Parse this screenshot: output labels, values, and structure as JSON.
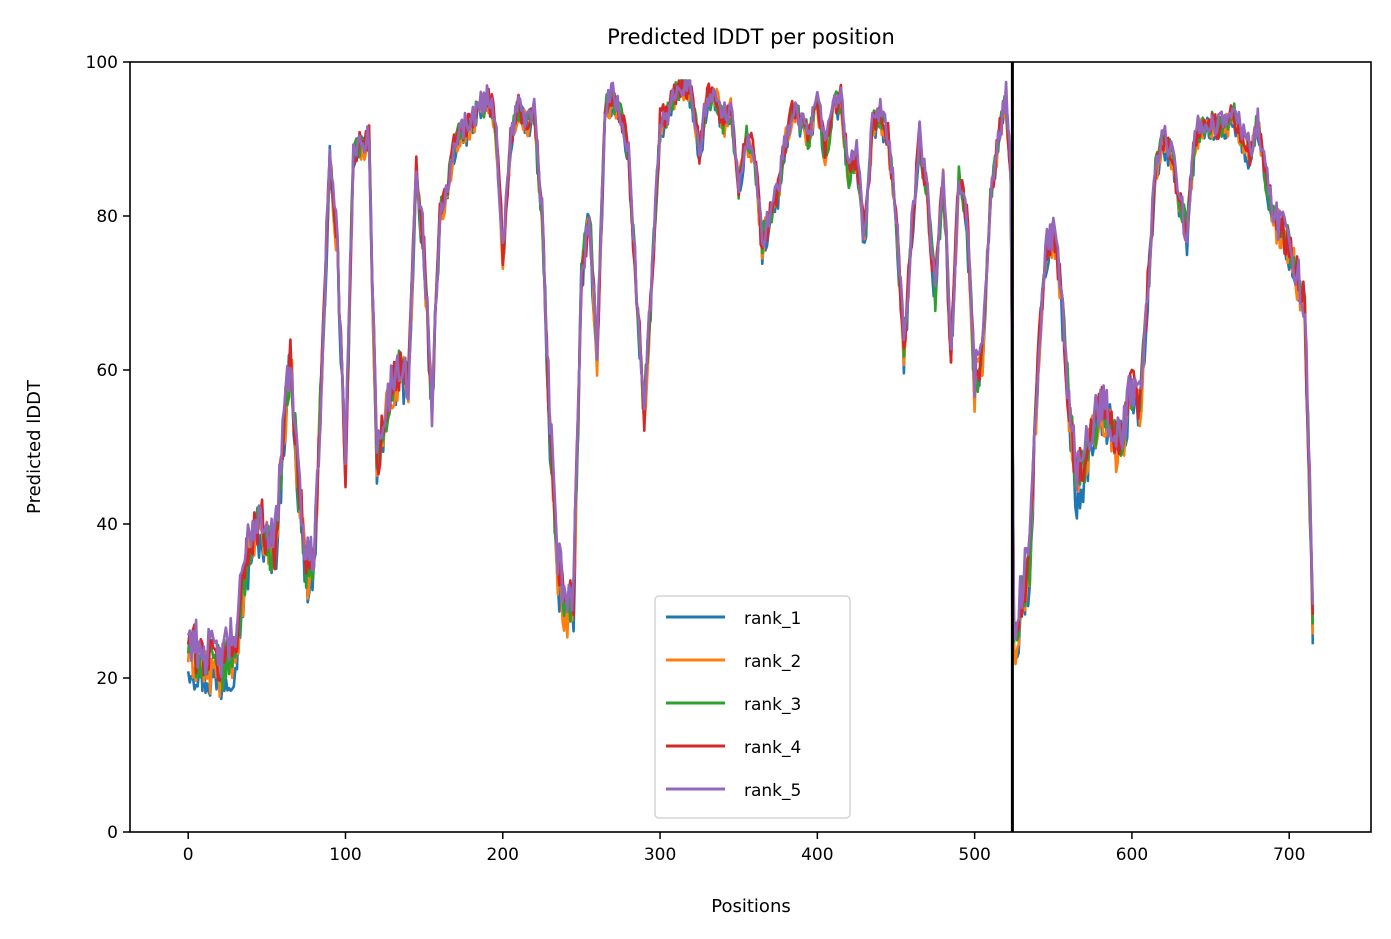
{
  "chart_data": {
    "type": "line",
    "title": "Predicted lDDT per position",
    "xlabel": "Positions",
    "ylabel": "Predicted lDDT",
    "xlim": [
      -37,
      752
    ],
    "ylim": [
      0,
      100
    ],
    "xticks": [
      0,
      100,
      200,
      300,
      400,
      500,
      600,
      700
    ],
    "yticks": [
      0,
      20,
      40,
      60,
      80,
      100
    ],
    "grid": false,
    "legend_position": "lower center",
    "chain_break": 524,
    "n_positions": 716,
    "anchor_x": [
      0,
      5,
      10,
      20,
      30,
      35,
      40,
      45,
      50,
      55,
      60,
      65,
      70,
      75,
      80,
      85,
      90,
      95,
      100,
      105,
      110,
      115,
      120,
      125,
      130,
      135,
      140,
      145,
      150,
      155,
      160,
      165,
      170,
      175,
      180,
      185,
      190,
      195,
      200,
      205,
      210,
      215,
      220,
      225,
      230,
      235,
      240,
      245,
      250,
      255,
      260,
      265,
      270,
      275,
      280,
      285,
      290,
      295,
      300,
      305,
      310,
      315,
      320,
      325,
      330,
      335,
      340,
      345,
      350,
      355,
      360,
      365,
      370,
      375,
      380,
      385,
      390,
      395,
      400,
      405,
      410,
      415,
      420,
      425,
      430,
      435,
      440,
      445,
      450,
      455,
      460,
      465,
      470,
      475,
      480,
      485,
      490,
      495,
      500,
      505,
      510,
      515,
      520,
      523,
      524,
      530,
      535,
      540,
      545,
      550,
      555,
      560,
      565,
      570,
      575,
      580,
      585,
      590,
      595,
      600,
      605,
      610,
      615,
      620,
      625,
      630,
      635,
      640,
      645,
      650,
      655,
      660,
      665,
      670,
      675,
      680,
      685,
      690,
      695,
      700,
      705,
      710,
      715
    ],
    "base_values": [
      24,
      23,
      22,
      21,
      24,
      32,
      38,
      40,
      38,
      36,
      50,
      62,
      45,
      34,
      35,
      60,
      88,
      75,
      47,
      88,
      89,
      90,
      47,
      54,
      58,
      60,
      58,
      86,
      75,
      55,
      80,
      84,
      90,
      91,
      92,
      94,
      95,
      93,
      75,
      90,
      94,
      92,
      93,
      80,
      52,
      34,
      29,
      30,
      72,
      80,
      62,
      94,
      95,
      93,
      88,
      70,
      55,
      72,
      92,
      93,
      96,
      97,
      96,
      88,
      95,
      96,
      92,
      94,
      84,
      90,
      88,
      76,
      80,
      83,
      90,
      94,
      92,
      90,
      95,
      88,
      94,
      95,
      85,
      88,
      76,
      92,
      93,
      90,
      80,
      62,
      78,
      90,
      82,
      70,
      85,
      62,
      85,
      80,
      58,
      62,
      82,
      90,
      95,
      85,
      22,
      30,
      35,
      60,
      75,
      78,
      70,
      55,
      45,
      48,
      52,
      55,
      54,
      50,
      52,
      58,
      55,
      70,
      86,
      90,
      88,
      82,
      78,
      90,
      92,
      92,
      91,
      92,
      93,
      90,
      88,
      92,
      85,
      80,
      78,
      76,
      72,
      68,
      28
    ],
    "series": [
      {
        "name": "rank_1",
        "color": "#1f77b4"
      },
      {
        "name": "rank_2",
        "color": "#ff7f0e"
      },
      {
        "name": "rank_3",
        "color": "#2ca02c"
      },
      {
        "name": "rank_4",
        "color": "#d62728"
      },
      {
        "name": "rank_5",
        "color": "#9467bd"
      }
    ]
  }
}
